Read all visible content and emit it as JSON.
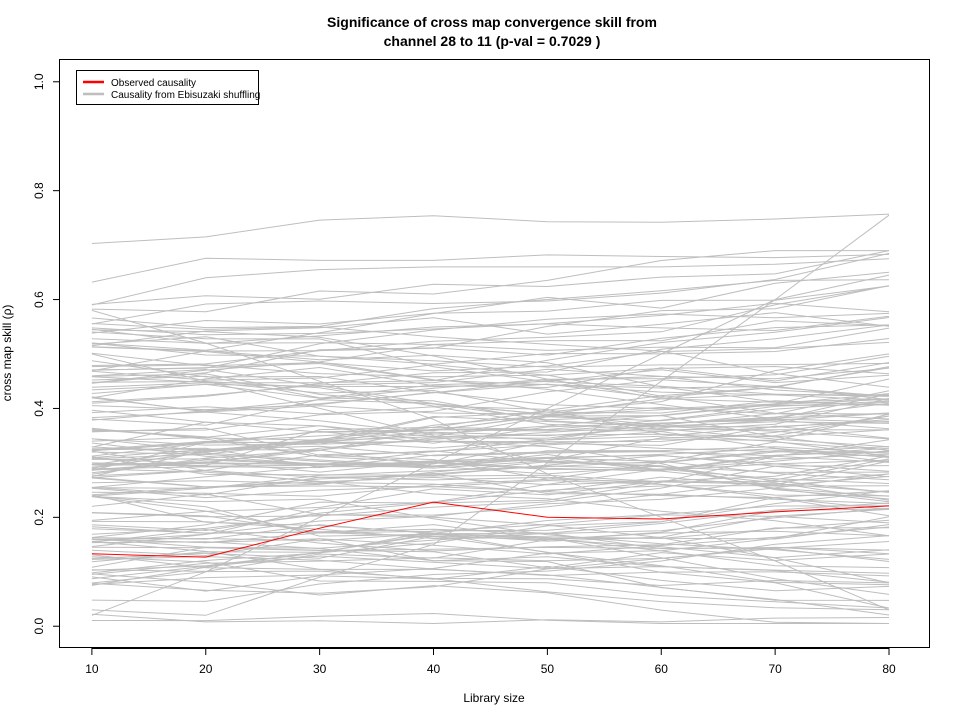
{
  "chart_data": {
    "type": "line",
    "title_line1": "Significance of cross map convergence skill from",
    "title_line2": "channel  28 to 11 (p-val =  0.7029 )",
    "xlabel": "Library size",
    "ylabel": "cross map skill (ρ)",
    "xlim": [
      7.2,
      83.6
    ],
    "ylim": [
      -0.04,
      1.04
    ],
    "x_ticks": [
      "10",
      "20",
      "30",
      "40",
      "50",
      "60",
      "70",
      "80"
    ],
    "y_ticks": [
      "0.0",
      "0.2",
      "0.4",
      "0.6",
      "0.8",
      "1.0"
    ],
    "x": [
      10,
      20,
      30,
      40,
      50,
      60,
      70,
      80
    ],
    "legend": {
      "position": "top-left",
      "entries": [
        {
          "label": "Observed causality",
          "color": "#ff0000"
        },
        {
          "label": "Causality from Ebisuzaki shuffling",
          "color": "#bebebe"
        }
      ]
    },
    "observed": {
      "name": "Observed causality",
      "color": "#ff0000",
      "values": [
        0.133,
        0.127,
        0.18,
        0.228,
        0.2,
        0.197,
        0.21,
        0.221
      ]
    },
    "shuffled_color": "#bebebe",
    "shuffled_count": 150,
    "shuffled_anchor_values": [
      [
        0.703,
        0.715,
        0.746,
        0.754,
        0.743,
        0.742,
        0.748,
        0.757
      ],
      [
        0.632,
        0.676,
        0.672,
        0.672,
        0.682,
        0.679,
        0.677,
        0.683
      ],
      [
        0.59,
        0.64,
        0.655,
        0.66,
        0.66,
        0.66,
        0.665,
        0.675
      ],
      [
        0.022,
        0.008,
        0.01,
        0.005,
        0.012,
        0.008,
        0.015,
        0.016
      ],
      [
        0.03,
        0.02,
        0.09,
        0.15,
        0.3,
        0.45,
        0.6,
        0.755
      ],
      [
        0.58,
        0.52,
        0.45,
        0.38,
        0.28,
        0.2,
        0.12,
        0.03
      ],
      [
        0.5,
        0.45,
        0.4,
        0.35,
        0.3,
        0.3,
        0.32,
        0.33
      ],
      [
        0.02,
        0.1,
        0.2,
        0.3,
        0.4,
        0.5,
        0.6,
        0.645
      ]
    ]
  }
}
